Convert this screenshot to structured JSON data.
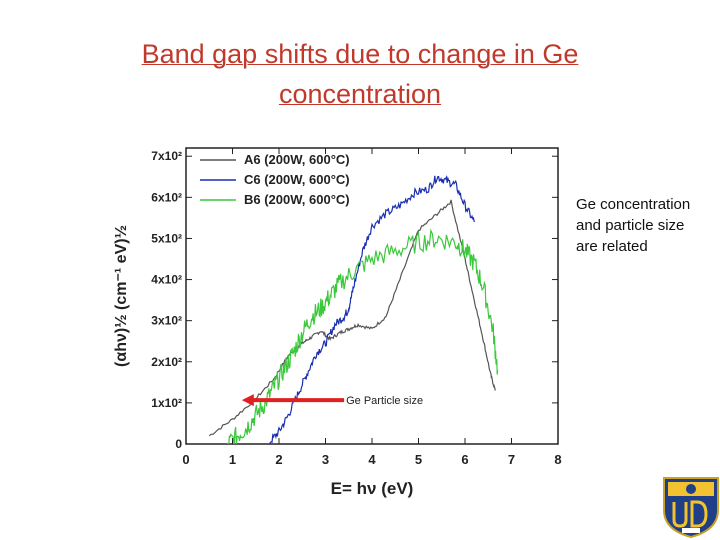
{
  "slide": {
    "title_line1": "Band gap shifts due to change in Ge",
    "title_line2": "concentration ",
    "side_note": "Ge concentration and particle size are related",
    "arrow_label": "Ge Particle size",
    "arrow_color": "#e02020",
    "logo_icon": "university-of-delaware-seal-icon"
  },
  "chart_data": {
    "type": "line",
    "title": "",
    "xlabel": "E= hν (eV)",
    "ylabel": "(αhν)½  (cm⁻¹ eV)½",
    "xlim": [
      0,
      8
    ],
    "ylim": [
      0,
      720
    ],
    "xticks": [
      0,
      1,
      2,
      3,
      4,
      5,
      6,
      7,
      8
    ],
    "x_tick_labels": [
      "0",
      "1",
      "2",
      "3",
      "4",
      "5",
      "6",
      "7",
      "8"
    ],
    "yticks": [
      0,
      100,
      200,
      300,
      400,
      500,
      600,
      700
    ],
    "y_tick_labels": [
      "0",
      "1x10²",
      "2x10²",
      "3x10²",
      "4x10²",
      "5x10²",
      "6x10²",
      "7x10²"
    ],
    "legend_position": "top-left",
    "series": [
      {
        "name": "A6 (200W, 600°C)",
        "color": "#555555",
        "noise": 4,
        "x": [
          0.5,
          1.0,
          1.5,
          1.9,
          2.2,
          2.5,
          2.7,
          2.9,
          3.1,
          3.3,
          3.5,
          3.7,
          4.0,
          4.3,
          4.6,
          5.0,
          5.4,
          5.7,
          6.0,
          6.2,
          6.4,
          6.55,
          6.65
        ],
        "y": [
          20,
          60,
          110,
          160,
          215,
          245,
          260,
          275,
          255,
          270,
          280,
          290,
          280,
          310,
          400,
          520,
          560,
          590,
          450,
          350,
          250,
          170,
          130
        ]
      },
      {
        "name": "C6 (200W, 600°C)",
        "color": "#1a2fb0",
        "noise": 10,
        "x": [
          1.8,
          2.0,
          2.2,
          2.4,
          2.6,
          2.8,
          3.0,
          3.2,
          3.4,
          3.5,
          3.6,
          3.8,
          4.0,
          4.3,
          4.6,
          4.9,
          5.2,
          5.4,
          5.6,
          5.8,
          6.0,
          6.2
        ],
        "y": [
          5,
          30,
          70,
          120,
          170,
          220,
          245,
          290,
          310,
          330,
          380,
          470,
          530,
          560,
          580,
          610,
          620,
          650,
          640,
          630,
          580,
          540
        ]
      },
      {
        "name": "B6 (200W, 600°C)",
        "color": "#3cc83c",
        "noise": 25,
        "x": [
          0.9,
          1.1,
          1.3,
          1.5,
          1.7,
          1.9,
          2.1,
          2.3,
          2.5,
          2.7,
          2.9,
          3.1,
          3.3,
          3.6,
          4.0,
          4.5,
          5.0,
          5.4,
          5.8,
          6.0,
          6.2,
          6.4,
          6.6,
          6.7
        ],
        "y": [
          0,
          20,
          40,
          70,
          100,
          140,
          180,
          220,
          270,
          310,
          330,
          360,
          390,
          420,
          450,
          470,
          490,
          500,
          490,
          470,
          440,
          380,
          280,
          180
        ]
      }
    ],
    "annotation": {
      "text": "Ge Particle size",
      "direction": "left",
      "x_start": 3.4,
      "x_end": 1.2,
      "y": 165
    }
  }
}
